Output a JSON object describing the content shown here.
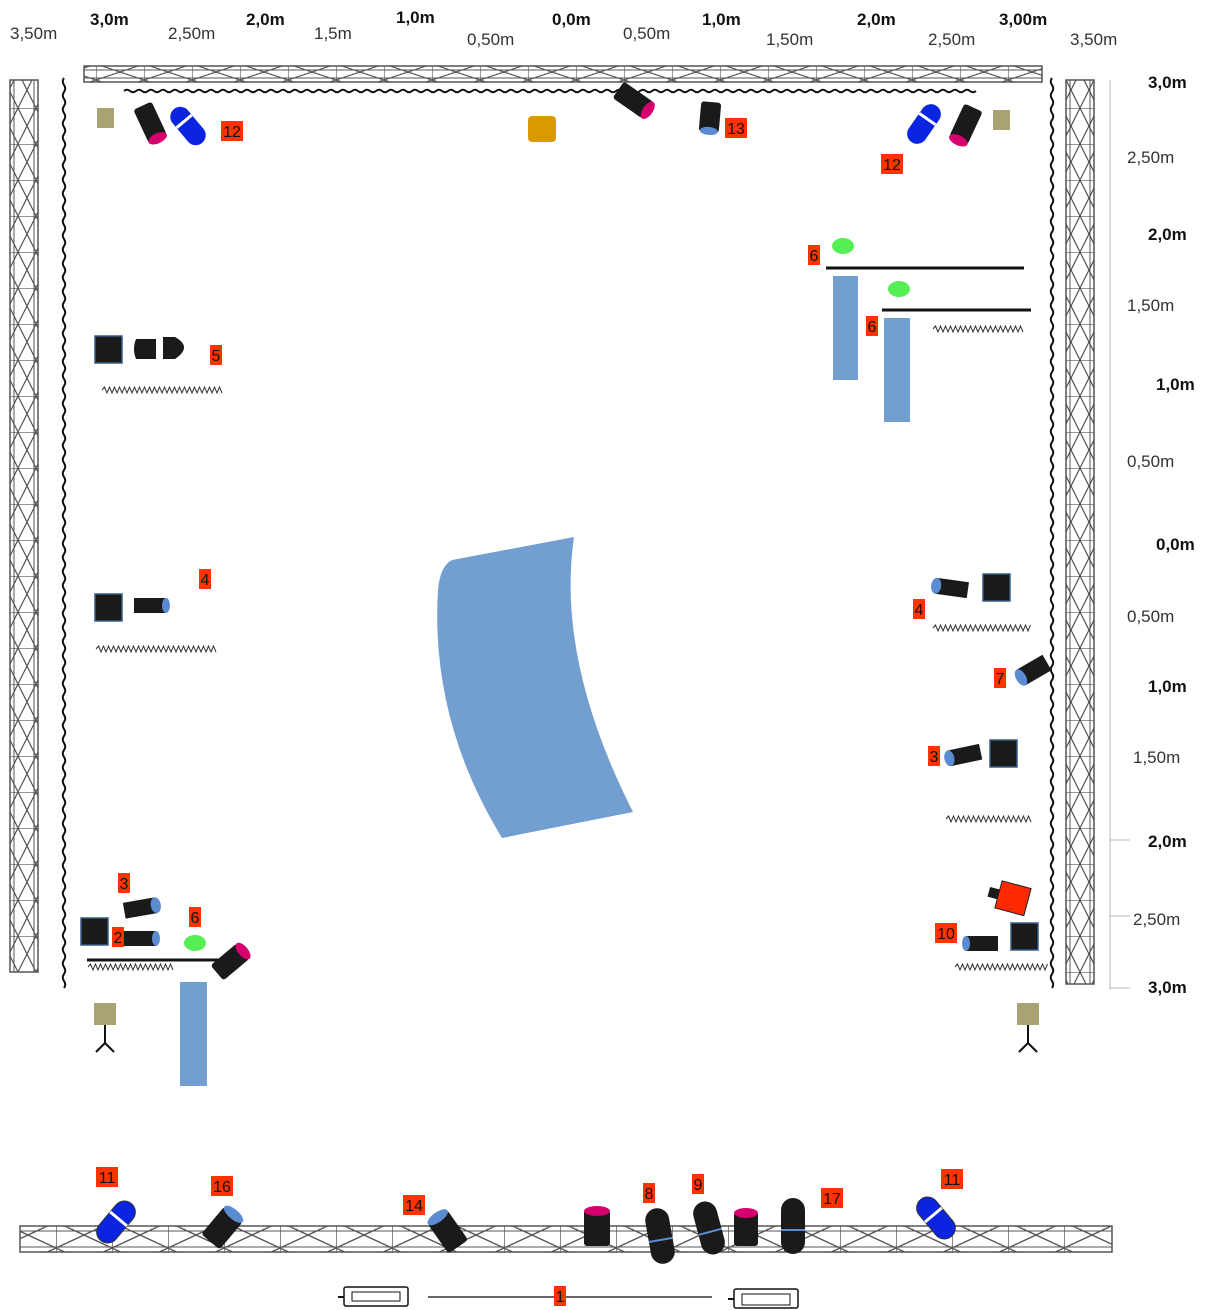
{
  "top_scale": [
    {
      "text": "3,50m",
      "bold": false
    },
    {
      "text": "3,0m",
      "bold": true
    },
    {
      "text": "2,50m",
      "bold": false
    },
    {
      "text": "2,0m",
      "bold": true
    },
    {
      "text": "1,5m",
      "bold": false
    },
    {
      "text": "1,0m",
      "bold": true
    },
    {
      "text": "0,50m",
      "bold": false
    },
    {
      "text": "0,0m",
      "bold": true
    },
    {
      "text": "0,50m",
      "bold": false
    },
    {
      "text": "1,0m",
      "bold": true
    },
    {
      "text": "1,50m",
      "bold": false
    },
    {
      "text": "2,0m",
      "bold": true
    },
    {
      "text": "2,50m",
      "bold": false
    },
    {
      "text": "3,00m",
      "bold": true
    },
    {
      "text": "3,50m",
      "bold": false
    }
  ],
  "right_scale": [
    {
      "text": "3,0m",
      "bold": true
    },
    {
      "text": "2,50m",
      "bold": false
    },
    {
      "text": "2,0m",
      "bold": true
    },
    {
      "text": "1,50m",
      "bold": false
    },
    {
      "text": "1,0m",
      "bold": true
    },
    {
      "text": "0,50m",
      "bold": false
    },
    {
      "text": "0,0m",
      "bold": true
    },
    {
      "text": "0,50m",
      "bold": false
    },
    {
      "text": "1,0m",
      "bold": true
    },
    {
      "text": "1,50m",
      "bold": false
    },
    {
      "text": "2,0m",
      "bold": true
    },
    {
      "text": "2,50m",
      "bold": false
    },
    {
      "text": "3,0m",
      "bold": true
    }
  ],
  "number_labels": [
    "12",
    "13",
    "12",
    "6",
    "6",
    "5",
    "4",
    "4",
    "7",
    "3",
    "3",
    "2",
    "6",
    "10",
    "11",
    "16",
    "14",
    "8",
    "9",
    "17",
    "11",
    "1"
  ],
  "colors": {
    "truss": "#555555",
    "label_bg": "#ff3300",
    "flag_blue": "#729fcf",
    "fixture_black": "#1a1a1a",
    "fixture_lens_blue": "#5b8bd1",
    "fixture_lens_magenta": "#d4006e",
    "led_blue": "#0a24e0",
    "green_spot": "#55ee55",
    "stand_khaki": "#a9a373",
    "amber_box": "#d99a00",
    "camera_red": "#ff2a00"
  },
  "icons": [
    "truss-icon",
    "curtain-icon",
    "flag-icon",
    "light-fixture-icon",
    "led-par-icon",
    "softbox-icon",
    "stand-icon",
    "camera-icon",
    "cyclorama-icon",
    "floor-cable-icon"
  ]
}
